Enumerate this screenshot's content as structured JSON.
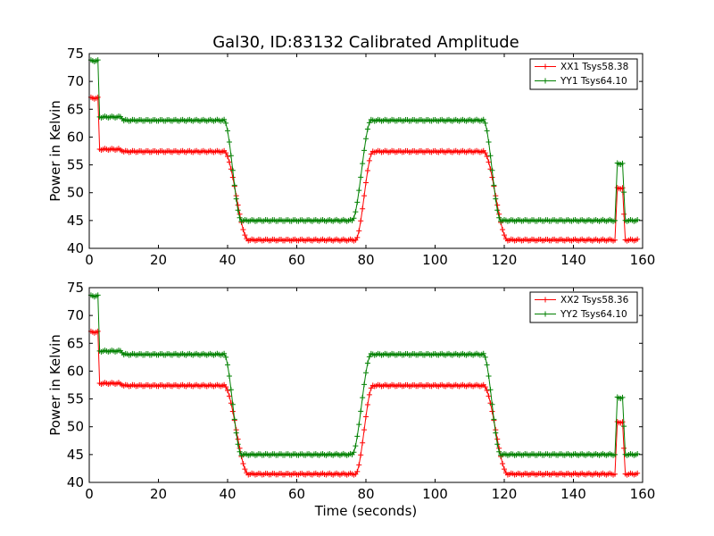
{
  "chart_data": [
    {
      "type": "line",
      "title": "Gal30, ID:83132 Calibrated Amplitude",
      "xlabel": "",
      "ylabel": "Power in Kelvin",
      "xlim": [
        0,
        160
      ],
      "ylim": [
        40,
        75
      ],
      "xticks": [
        0,
        20,
        40,
        60,
        80,
        100,
        120,
        140,
        160
      ],
      "yticks": [
        40,
        45,
        50,
        55,
        60,
        65,
        70,
        75
      ],
      "grid": false,
      "legend_position": "top-right",
      "marker": "+",
      "series": [
        {
          "name": "XX1 Tsys58.38",
          "color": "#ff0000",
          "segments": [
            {
              "x0": 0.5,
              "x1": 2.5,
              "y": 67.0
            },
            {
              "x0": 3.0,
              "x1": 8.5,
              "y": 57.8
            },
            {
              "x0": 10.0,
              "x1": 39.0,
              "y": 57.4
            },
            {
              "x0": 46.0,
              "x1": 77.0,
              "y": 41.5
            },
            {
              "x0": 82.0,
              "x1": 114.0,
              "y": 57.4
            },
            {
              "x0": 121.0,
              "x1": 152.0,
              "y": 41.5
            },
            {
              "x0": 152.7,
              "x1": 154.2,
              "y": 50.8
            },
            {
              "x0": 155.0,
              "x1": 158.5,
              "y": 41.5
            }
          ]
        },
        {
          "name": "YY1 Tsys64.10",
          "color": "#008000",
          "segments": [
            {
              "x0": 0.5,
              "x1": 2.5,
              "y": 73.7
            },
            {
              "x0": 3.0,
              "x1": 9.0,
              "y": 63.6
            },
            {
              "x0": 10.0,
              "x1": 39.0,
              "y": 63.0
            },
            {
              "x0": 44.0,
              "x1": 76.0,
              "y": 45.0
            },
            {
              "x0": 81.5,
              "x1": 114.0,
              "y": 63.0
            },
            {
              "x0": 119.0,
              "x1": 152.0,
              "y": 45.0
            },
            {
              "x0": 152.7,
              "x1": 154.2,
              "y": 55.2
            },
            {
              "x0": 155.0,
              "x1": 158.5,
              "y": 45.0
            }
          ]
        }
      ]
    },
    {
      "type": "line",
      "title": "",
      "xlabel": "Time (seconds)",
      "ylabel": "Power in Kelvin",
      "xlim": [
        0,
        160
      ],
      "ylim": [
        40,
        75
      ],
      "xticks": [
        0,
        20,
        40,
        60,
        80,
        100,
        120,
        140,
        160
      ],
      "yticks": [
        40,
        45,
        50,
        55,
        60,
        65,
        70,
        75
      ],
      "grid": false,
      "legend_position": "top-right",
      "marker": "+",
      "series": [
        {
          "name": "XX2 Tsys58.36",
          "color": "#ff0000",
          "segments": [
            {
              "x0": 0.5,
              "x1": 2.5,
              "y": 67.0
            },
            {
              "x0": 3.0,
              "x1": 8.5,
              "y": 57.8
            },
            {
              "x0": 10.0,
              "x1": 39.0,
              "y": 57.4
            },
            {
              "x0": 46.0,
              "x1": 77.0,
              "y": 41.5
            },
            {
              "x0": 82.0,
              "x1": 114.0,
              "y": 57.4
            },
            {
              "x0": 121.0,
              "x1": 152.0,
              "y": 41.5
            },
            {
              "x0": 152.7,
              "x1": 154.2,
              "y": 50.8
            },
            {
              "x0": 155.0,
              "x1": 158.5,
              "y": 41.5
            }
          ]
        },
        {
          "name": "YY2 Tsys64.10",
          "color": "#008000",
          "segments": [
            {
              "x0": 0.5,
              "x1": 2.5,
              "y": 73.5
            },
            {
              "x0": 3.0,
              "x1": 9.0,
              "y": 63.6
            },
            {
              "x0": 10.0,
              "x1": 39.0,
              "y": 63.0
            },
            {
              "x0": 44.0,
              "x1": 76.0,
              "y": 45.0
            },
            {
              "x0": 81.5,
              "x1": 114.0,
              "y": 63.0
            },
            {
              "x0": 119.0,
              "x1": 152.0,
              "y": 45.0
            },
            {
              "x0": 152.7,
              "x1": 154.2,
              "y": 55.2
            },
            {
              "x0": 155.0,
              "x1": 158.5,
              "y": 45.0
            }
          ]
        }
      ]
    }
  ]
}
